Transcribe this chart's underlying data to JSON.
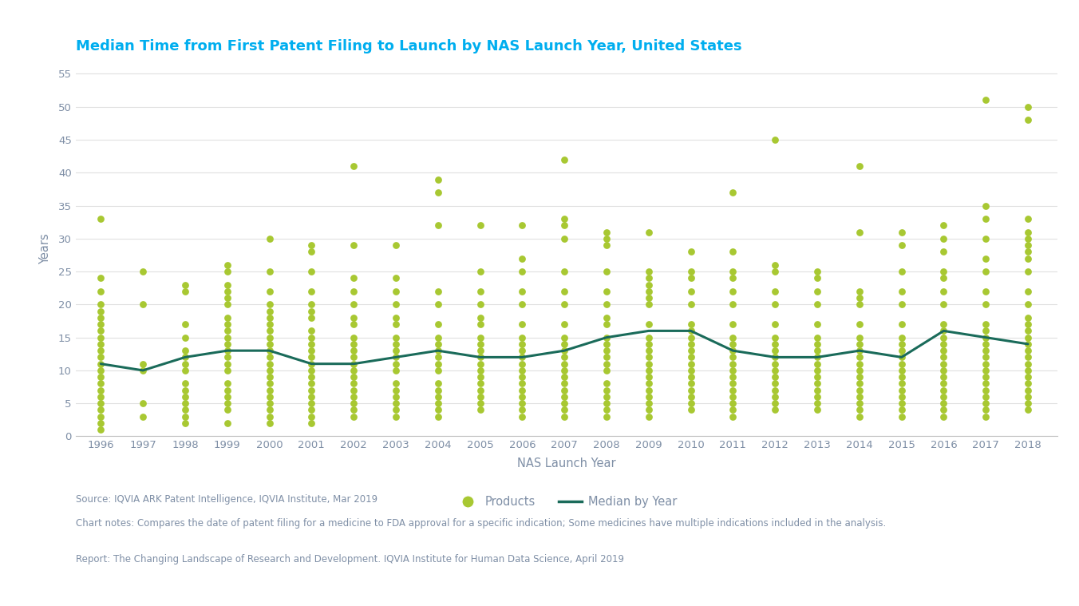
{
  "title": "Median Time from First Patent Filing to Launch by NAS Launch Year, United States",
  "xlabel": "NAS Launch Year",
  "ylabel": "Years",
  "years": [
    1996,
    1997,
    1998,
    1999,
    2000,
    2001,
    2002,
    2003,
    2004,
    2005,
    2006,
    2007,
    2008,
    2009,
    2010,
    2011,
    2012,
    2013,
    2014,
    2015,
    2016,
    2017,
    2018
  ],
  "median_values": [
    11,
    10,
    12,
    13,
    13,
    11,
    11,
    12,
    13,
    12,
    12,
    13,
    15,
    16,
    16,
    13,
    12,
    12,
    13,
    12,
    16,
    15,
    14
  ],
  "scatter_data": {
    "1996": [
      1,
      2,
      3,
      4,
      5,
      6,
      7,
      8,
      9,
      10,
      11,
      12,
      13,
      14,
      15,
      16,
      17,
      18,
      19,
      20,
      22,
      24,
      33
    ],
    "1997": [
      3,
      5,
      10,
      11,
      20,
      25
    ],
    "1998": [
      2,
      3,
      4,
      5,
      6,
      7,
      8,
      10,
      11,
      12,
      13,
      15,
      17,
      22,
      23
    ],
    "1999": [
      2,
      4,
      5,
      6,
      7,
      8,
      10,
      11,
      12,
      13,
      14,
      15,
      16,
      17,
      18,
      20,
      21,
      22,
      23,
      25,
      26
    ],
    "2000": [
      2,
      3,
      4,
      5,
      6,
      7,
      8,
      9,
      10,
      11,
      12,
      13,
      14,
      15,
      16,
      17,
      18,
      19,
      20,
      22,
      25,
      30
    ],
    "2001": [
      2,
      3,
      4,
      5,
      6,
      7,
      8,
      9,
      10,
      11,
      12,
      13,
      14,
      15,
      16,
      18,
      19,
      20,
      22,
      25,
      28,
      29
    ],
    "2002": [
      3,
      4,
      5,
      6,
      7,
      8,
      9,
      10,
      11,
      12,
      13,
      14,
      15,
      17,
      18,
      20,
      22,
      24,
      29,
      41
    ],
    "2003": [
      3,
      4,
      5,
      6,
      7,
      8,
      10,
      11,
      12,
      13,
      14,
      15,
      17,
      18,
      20,
      22,
      24,
      29
    ],
    "2004": [
      3,
      4,
      5,
      6,
      7,
      8,
      10,
      11,
      12,
      13,
      14,
      15,
      17,
      20,
      22,
      32,
      37,
      39
    ],
    "2005": [
      4,
      5,
      6,
      7,
      8,
      9,
      10,
      11,
      12,
      13,
      14,
      15,
      17,
      18,
      20,
      22,
      25,
      32
    ],
    "2006": [
      3,
      4,
      5,
      6,
      7,
      8,
      9,
      10,
      11,
      12,
      13,
      14,
      15,
      17,
      20,
      22,
      25,
      27,
      32
    ],
    "2007": [
      3,
      4,
      5,
      6,
      7,
      8,
      9,
      10,
      11,
      12,
      13,
      14,
      15,
      17,
      20,
      22,
      25,
      30,
      32,
      33,
      42
    ],
    "2008": [
      3,
      4,
      5,
      6,
      7,
      8,
      10,
      11,
      12,
      13,
      14,
      15,
      17,
      18,
      20,
      22,
      25,
      29,
      30,
      31
    ],
    "2009": [
      3,
      4,
      5,
      6,
      7,
      8,
      9,
      10,
      11,
      12,
      13,
      14,
      15,
      17,
      20,
      21,
      22,
      23,
      24,
      25,
      31
    ],
    "2010": [
      4,
      5,
      6,
      7,
      8,
      9,
      10,
      11,
      12,
      13,
      14,
      15,
      16,
      17,
      20,
      22,
      24,
      25,
      28
    ],
    "2011": [
      3,
      4,
      5,
      6,
      7,
      8,
      9,
      10,
      11,
      12,
      13,
      14,
      15,
      17,
      20,
      22,
      24,
      25,
      28,
      37
    ],
    "2012": [
      4,
      5,
      6,
      7,
      8,
      9,
      10,
      11,
      12,
      13,
      14,
      15,
      17,
      20,
      22,
      25,
      26,
      45
    ],
    "2013": [
      4,
      5,
      6,
      7,
      8,
      9,
      10,
      11,
      12,
      13,
      14,
      15,
      17,
      20,
      22,
      24,
      25
    ],
    "2014": [
      3,
      4,
      5,
      6,
      7,
      8,
      9,
      10,
      11,
      12,
      13,
      14,
      15,
      17,
      20,
      21,
      22,
      31,
      41
    ],
    "2015": [
      3,
      4,
      5,
      6,
      7,
      8,
      9,
      10,
      11,
      12,
      13,
      14,
      15,
      17,
      20,
      22,
      25,
      29,
      31
    ],
    "2016": [
      3,
      4,
      5,
      6,
      7,
      8,
      9,
      10,
      11,
      12,
      13,
      14,
      15,
      16,
      17,
      20,
      22,
      24,
      25,
      28,
      30,
      32
    ],
    "2017": [
      3,
      4,
      5,
      6,
      7,
      8,
      9,
      10,
      11,
      12,
      13,
      14,
      15,
      16,
      17,
      20,
      22,
      25,
      27,
      30,
      33,
      35,
      51
    ],
    "2018": [
      4,
      5,
      6,
      7,
      8,
      9,
      10,
      11,
      12,
      13,
      14,
      15,
      16,
      17,
      18,
      20,
      22,
      25,
      27,
      28,
      29,
      30,
      31,
      33,
      48,
      50
    ]
  },
  "dot_color": "#a8c832",
  "line_color": "#1a6b5a",
  "title_color": "#00aeef",
  "axis_label_color": "#7f8fa6",
  "tick_label_color": "#7f8fa6",
  "note_color": "#7f8fa6",
  "background_color": "#ffffff",
  "ylim": [
    0,
    57
  ],
  "yticks": [
    0,
    5,
    10,
    15,
    20,
    25,
    30,
    35,
    40,
    45,
    50,
    55
  ],
  "dot_size": 40,
  "line_width": 2.2,
  "legend_dot_label": "Products",
  "legend_line_label": "Median by Year",
  "source_line1": "Source: IQVIA ARK Patent Intelligence, IQVIA Institute, Mar 2019",
  "source_line2": "Chart notes: Compares the date of patent filing for a medicine to FDA approval for a specific indication; Some medicines have multiple indications included in the analysis.",
  "source_line3": "Report: The Changing Landscape of Research and Development. IQVIA Institute for Human Data Science, April 2019"
}
